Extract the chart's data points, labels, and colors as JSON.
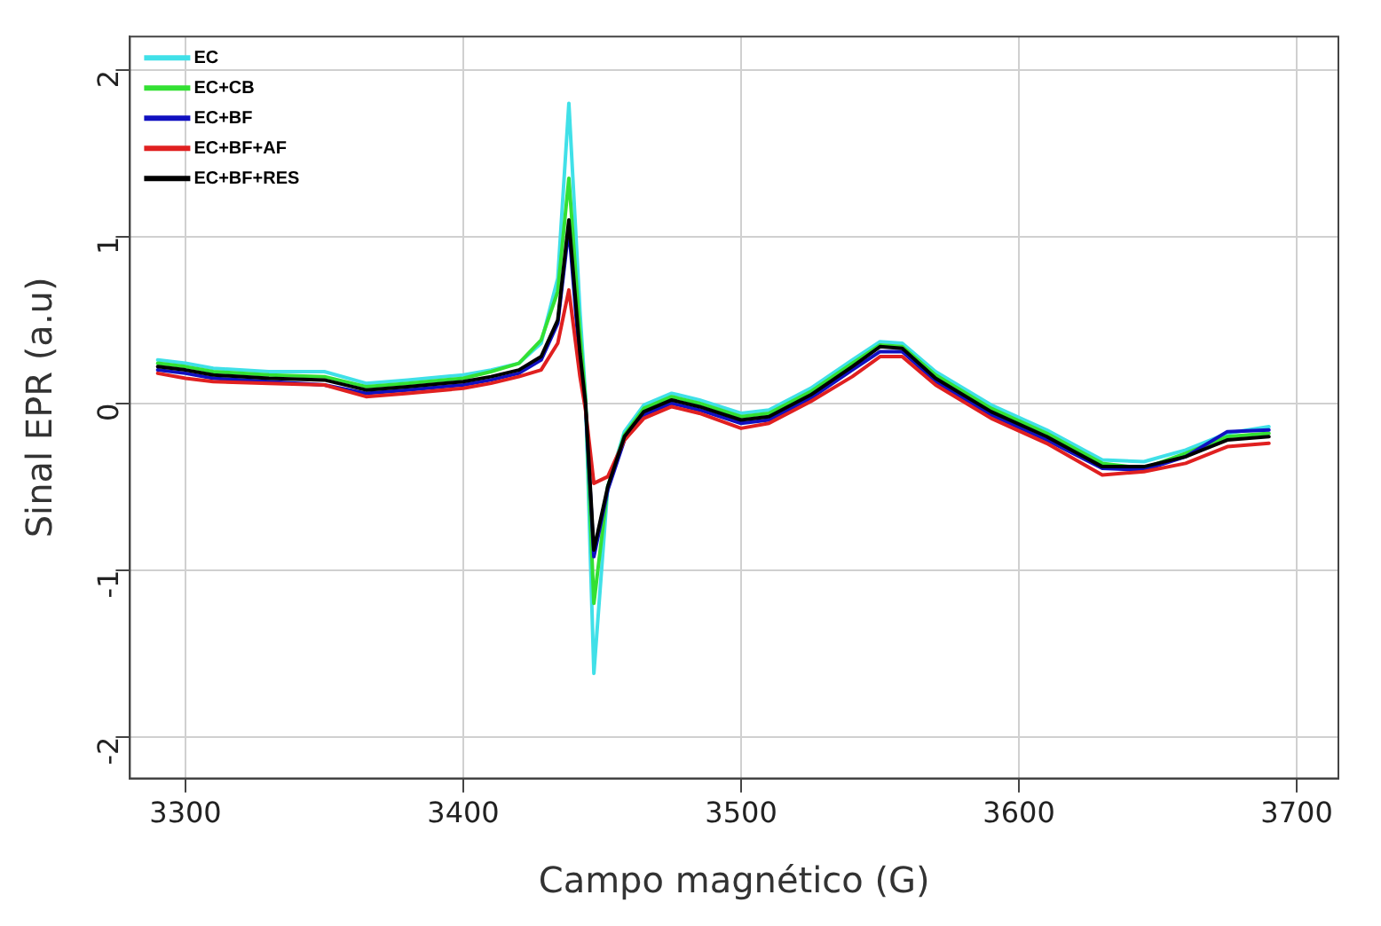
{
  "chart_data": {
    "type": "line",
    "xlabel": "Campo magnético (G)",
    "ylabel": "Sinal EPR (a.u)",
    "x": [
      3290,
      3300,
      3310,
      3330,
      3350,
      3365,
      3380,
      3400,
      3410,
      3420,
      3428,
      3434,
      3438,
      3442,
      3444,
      3447,
      3452,
      3458,
      3465,
      3475,
      3485,
      3500,
      3510,
      3525,
      3540,
      3550,
      3558,
      3570,
      3590,
      3610,
      3630,
      3645,
      3660,
      3675,
      3690
    ],
    "series": [
      {
        "name": "EC",
        "color": "#40e0e8",
        "values": [
          0.26,
          0.24,
          0.21,
          0.19,
          0.19,
          0.12,
          0.14,
          0.17,
          0.2,
          0.24,
          0.36,
          0.75,
          1.8,
          0.55,
          0.04,
          -1.62,
          -0.5,
          -0.17,
          -0.01,
          0.06,
          0.02,
          -0.06,
          -0.04,
          0.09,
          0.26,
          0.37,
          0.36,
          0.19,
          -0.01,
          -0.16,
          -0.34,
          -0.35,
          -0.28,
          -0.18,
          -0.14
        ]
      },
      {
        "name": "EC+CB",
        "color": "#33e033",
        "values": [
          0.24,
          0.22,
          0.19,
          0.17,
          0.16,
          0.1,
          0.12,
          0.15,
          0.19,
          0.24,
          0.38,
          0.67,
          1.35,
          0.42,
          0.02,
          -1.2,
          -0.5,
          -0.19,
          -0.03,
          0.04,
          0,
          -0.08,
          -0.06,
          0.07,
          0.24,
          0.35,
          0.34,
          0.17,
          -0.03,
          -0.18,
          -0.36,
          -0.39,
          -0.3,
          -0.2,
          -0.18
        ]
      },
      {
        "name": "EC+BF",
        "color": "#1010c0",
        "values": [
          0.2,
          0.18,
          0.15,
          0.13,
          0.11,
          0.06,
          0.08,
          0.11,
          0.14,
          0.18,
          0.26,
          0.48,
          1.05,
          0.24,
          -0.02,
          -0.92,
          -0.52,
          -0.22,
          -0.07,
          0,
          -0.04,
          -0.12,
          -0.1,
          0.03,
          0.2,
          0.31,
          0.31,
          0.13,
          -0.07,
          -0.22,
          -0.39,
          -0.4,
          -0.32,
          -0.17,
          -0.16
        ]
      },
      {
        "name": "EC+BF+AF",
        "color": "#e02020",
        "values": [
          0.18,
          0.15,
          0.13,
          0.12,
          0.11,
          0.04,
          0.06,
          0.09,
          0.12,
          0.16,
          0.2,
          0.36,
          0.68,
          0.16,
          -0.04,
          -0.48,
          -0.44,
          -0.22,
          -0.09,
          -0.02,
          -0.06,
          -0.15,
          -0.12,
          0.01,
          0.16,
          0.28,
          0.28,
          0.11,
          -0.09,
          -0.24,
          -0.43,
          -0.41,
          -0.36,
          -0.26,
          -0.24
        ]
      },
      {
        "name": "EC+BF+RES",
        "color": "#000000",
        "values": [
          0.22,
          0.2,
          0.17,
          0.15,
          0.14,
          0.08,
          0.1,
          0.13,
          0.16,
          0.2,
          0.28,
          0.5,
          1.1,
          0.3,
          0,
          -0.88,
          -0.5,
          -0.2,
          -0.05,
          0.02,
          -0.02,
          -0.1,
          -0.08,
          0.05,
          0.22,
          0.34,
          0.33,
          0.15,
          -0.05,
          -0.2,
          -0.38,
          -0.38,
          -0.32,
          -0.22,
          -0.2
        ]
      }
    ],
    "xlim": [
      3280,
      3715
    ],
    "xticks": [
      3300,
      3400,
      3500,
      3600,
      3700
    ],
    "ylim": [
      -2.25,
      2.2
    ],
    "yticks": [
      -2,
      -1,
      0,
      1,
      2
    ],
    "grid": true,
    "legend": "top left",
    "marker": "none",
    "line_style": "solid"
  }
}
